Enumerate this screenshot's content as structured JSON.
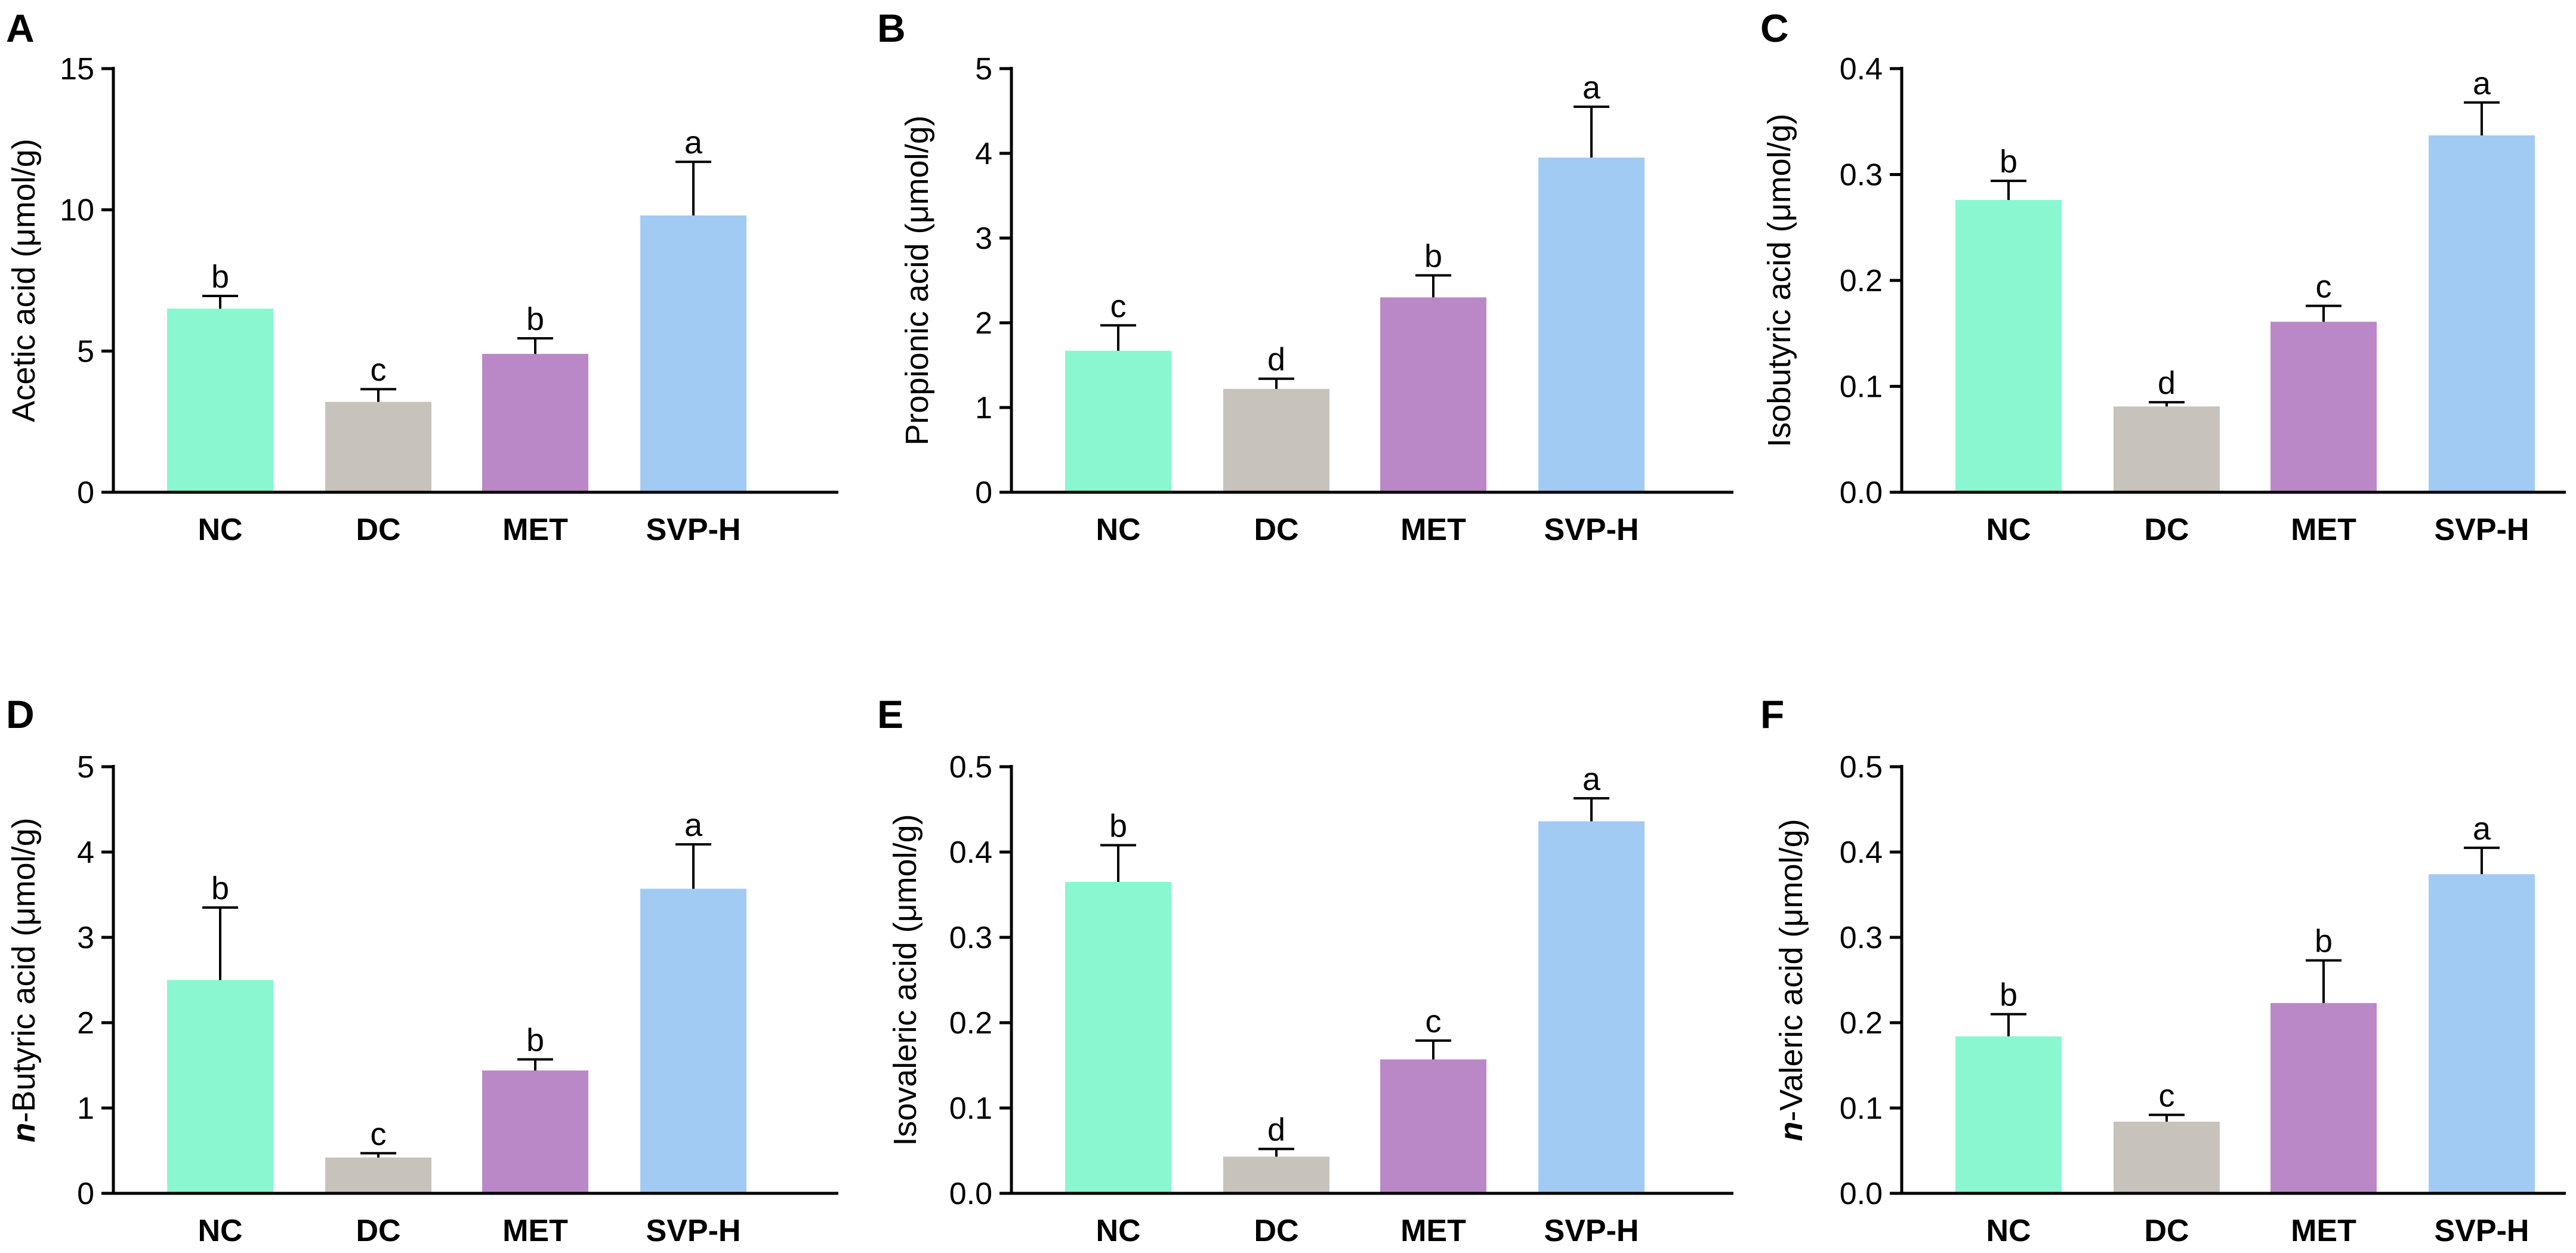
{
  "figure": {
    "title": ""
  },
  "colors": {
    "NC": "#8af7d0",
    "DC": "#c8c2bd",
    "MET": "#bb88c7",
    "SVP-H": "#a2cbf4"
  },
  "chart_data": [
    {
      "panel": "A",
      "type": "bar",
      "categories": [
        "NC",
        "DC",
        "MET",
        "SVP-H"
      ],
      "values": [
        6.5,
        3.2,
        4.9,
        9.8
      ],
      "errors": [
        0.45,
        0.45,
        0.55,
        1.9
      ],
      "sig_letters": [
        "b",
        "c",
        "b",
        "a"
      ],
      "ylabel": "Acetic acid (μmol/g)",
      "ylim": [
        0,
        15
      ],
      "yticks": [
        0,
        5,
        10,
        15
      ],
      "ytick_labels": [
        "0",
        "5",
        "10",
        "15"
      ]
    },
    {
      "panel": "B",
      "type": "bar",
      "categories": [
        "NC",
        "DC",
        "MET",
        "SVP-H"
      ],
      "values": [
        1.67,
        1.22,
        2.3,
        3.95
      ],
      "errors": [
        0.3,
        0.12,
        0.26,
        0.6
      ],
      "sig_letters": [
        "c",
        "d",
        "b",
        "a"
      ],
      "ylabel": "Propionic acid (μmol/g)",
      "ylim": [
        0,
        5
      ],
      "yticks": [
        0,
        1,
        2,
        3,
        4,
        5
      ],
      "ytick_labels": [
        "0",
        "1",
        "2",
        "3",
        "4",
        "5"
      ]
    },
    {
      "panel": "C",
      "type": "bar",
      "categories": [
        "NC",
        "DC",
        "MET",
        "SVP-H"
      ],
      "values": [
        0.276,
        0.081,
        0.161,
        0.337
      ],
      "errors": [
        0.018,
        0.004,
        0.015,
        0.031
      ],
      "sig_letters": [
        "b",
        "d",
        "c",
        "a"
      ],
      "ylabel": "Isobutyric acid (μmol/g)",
      "ylim": [
        0,
        0.4
      ],
      "yticks": [
        0,
        0.1,
        0.2,
        0.3,
        0.4
      ],
      "ytick_labels": [
        "0.0",
        "0.1",
        "0.2",
        "0.3",
        "0.4"
      ]
    },
    {
      "panel": "D",
      "type": "bar",
      "categories": [
        "NC",
        "DC",
        "MET",
        "SVP-H"
      ],
      "values": [
        2.5,
        0.42,
        1.44,
        3.57
      ],
      "errors": [
        0.85,
        0.05,
        0.13,
        0.52
      ],
      "sig_letters": [
        "b",
        "c",
        "b",
        "a"
      ],
      "ylabel_prefix": "n",
      "ylabel": "-Butyric acid (μmol/g)",
      "ylim": [
        0,
        5
      ],
      "yticks": [
        0,
        1,
        2,
        3,
        4,
        5
      ],
      "ytick_labels": [
        "0",
        "1",
        "2",
        "3",
        "4",
        "5"
      ]
    },
    {
      "panel": "E",
      "type": "bar",
      "categories": [
        "NC",
        "DC",
        "MET",
        "SVP-H"
      ],
      "values": [
        0.365,
        0.043,
        0.157,
        0.436
      ],
      "errors": [
        0.043,
        0.009,
        0.022,
        0.027
      ],
      "sig_letters": [
        "b",
        "d",
        "c",
        "a"
      ],
      "ylabel": "Isovaleric acid (μmol/g)",
      "ylim": [
        0,
        0.5
      ],
      "yticks": [
        0,
        0.1,
        0.2,
        0.3,
        0.4,
        0.5
      ],
      "ytick_labels": [
        "0.0",
        "0.1",
        "0.2",
        "0.3",
        "0.4",
        "0.5"
      ]
    },
    {
      "panel": "F",
      "type": "bar",
      "categories": [
        "NC",
        "DC",
        "MET",
        "SVP-H"
      ],
      "values": [
        0.184,
        0.084,
        0.223,
        0.374
      ],
      "errors": [
        0.026,
        0.008,
        0.05,
        0.031
      ],
      "sig_letters": [
        "b",
        "c",
        "b",
        "a"
      ],
      "ylabel_prefix": "n",
      "ylabel": "-Valeric acid (μmol/g)",
      "ylim": [
        0,
        0.5
      ],
      "yticks": [
        0,
        0.1,
        0.2,
        0.3,
        0.4,
        0.5
      ],
      "ytick_labels": [
        "0.0",
        "0.1",
        "0.2",
        "0.3",
        "0.4",
        "0.5"
      ]
    }
  ]
}
